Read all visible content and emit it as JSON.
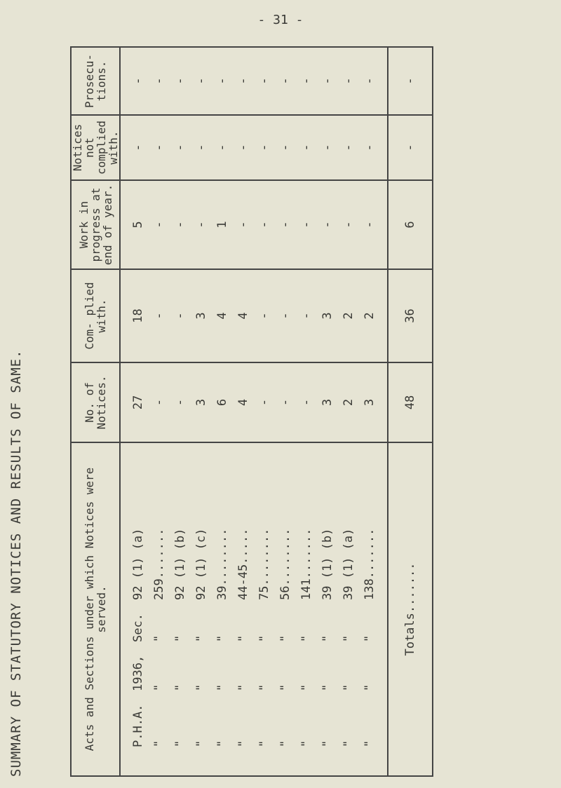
{
  "page_number": "- 31 -",
  "title": "SUMMARY OF STATUTORY NOTICES AND RESULTS OF SAME.",
  "headers": {
    "acts": "Acts and Sections under which Notices were served.",
    "notices": "No. of Notices.",
    "complied": "Com- plied with.",
    "work": "Work in progress at end of year.",
    "not_complied": "Notices not complied with.",
    "prosecutions": "Prosecu- tions."
  },
  "rows": [
    {
      "act": "P.H.A.",
      "year": "1936,",
      "sec": "Sec.",
      "section": "92 (1) (a)",
      "notices": "27",
      "complied": "18",
      "work": "5",
      "not_complied": "-",
      "prosecutions": "-"
    },
    {
      "act": "\"",
      "year": "\"",
      "sec": "\"",
      "section": "259.......",
      "notices": "-",
      "complied": "-",
      "work": "-",
      "not_complied": "-",
      "prosecutions": "-"
    },
    {
      "act": "\"",
      "year": "\"",
      "sec": "\"",
      "section": "92 (1) (b)",
      "notices": "-",
      "complied": "-",
      "work": "-",
      "not_complied": "-",
      "prosecutions": "-"
    },
    {
      "act": "\"",
      "year": "\"",
      "sec": "\"",
      "section": "92 (1) (c)",
      "notices": "3",
      "complied": "3",
      "work": "-",
      "not_complied": "-",
      "prosecutions": "-"
    },
    {
      "act": "\"",
      "year": "\"",
      "sec": "\"",
      "section": "39........",
      "notices": "6",
      "complied": "4",
      "work": "1",
      "not_complied": "-",
      "prosecutions": "-"
    },
    {
      "act": "\"",
      "year": "\"",
      "sec": "\"",
      "section": "44-45.....",
      "notices": "4",
      "complied": "4",
      "work": "-",
      "not_complied": "-",
      "prosecutions": "-"
    },
    {
      "act": "\"",
      "year": "\"",
      "sec": "\"",
      "section": "75........",
      "notices": "-",
      "complied": "-",
      "work": "-",
      "not_complied": "-",
      "prosecutions": "-"
    },
    {
      "act": "\"",
      "year": "\"",
      "sec": "\"",
      "section": "56........",
      "notices": "-",
      "complied": "-",
      "work": "-",
      "not_complied": "-",
      "prosecutions": "-"
    },
    {
      "act": "\"",
      "year": "\"",
      "sec": "\"",
      "section": "141.......",
      "notices": "-",
      "complied": "-",
      "work": "-",
      "not_complied": "-",
      "prosecutions": "-"
    },
    {
      "act": "\"",
      "year": "\"",
      "sec": "\"",
      "section": "39 (1) (b)",
      "notices": "3",
      "complied": "3",
      "work": "-",
      "not_complied": "-",
      "prosecutions": "-"
    },
    {
      "act": "\"",
      "year": "\"",
      "sec": "\"",
      "section": "39 (1) (a)",
      "notices": "2",
      "complied": "2",
      "work": "-",
      "not_complied": "-",
      "prosecutions": "-"
    },
    {
      "act": "\"",
      "year": "\"",
      "sec": "\"",
      "section": "138.......",
      "notices": "3",
      "complied": "2",
      "work": "-",
      "not_complied": "-",
      "prosecutions": "-"
    }
  ],
  "totals": {
    "label": "Totals.......",
    "notices": "48",
    "complied": "36",
    "work": "6",
    "not_complied": "-",
    "prosecutions": "-"
  }
}
